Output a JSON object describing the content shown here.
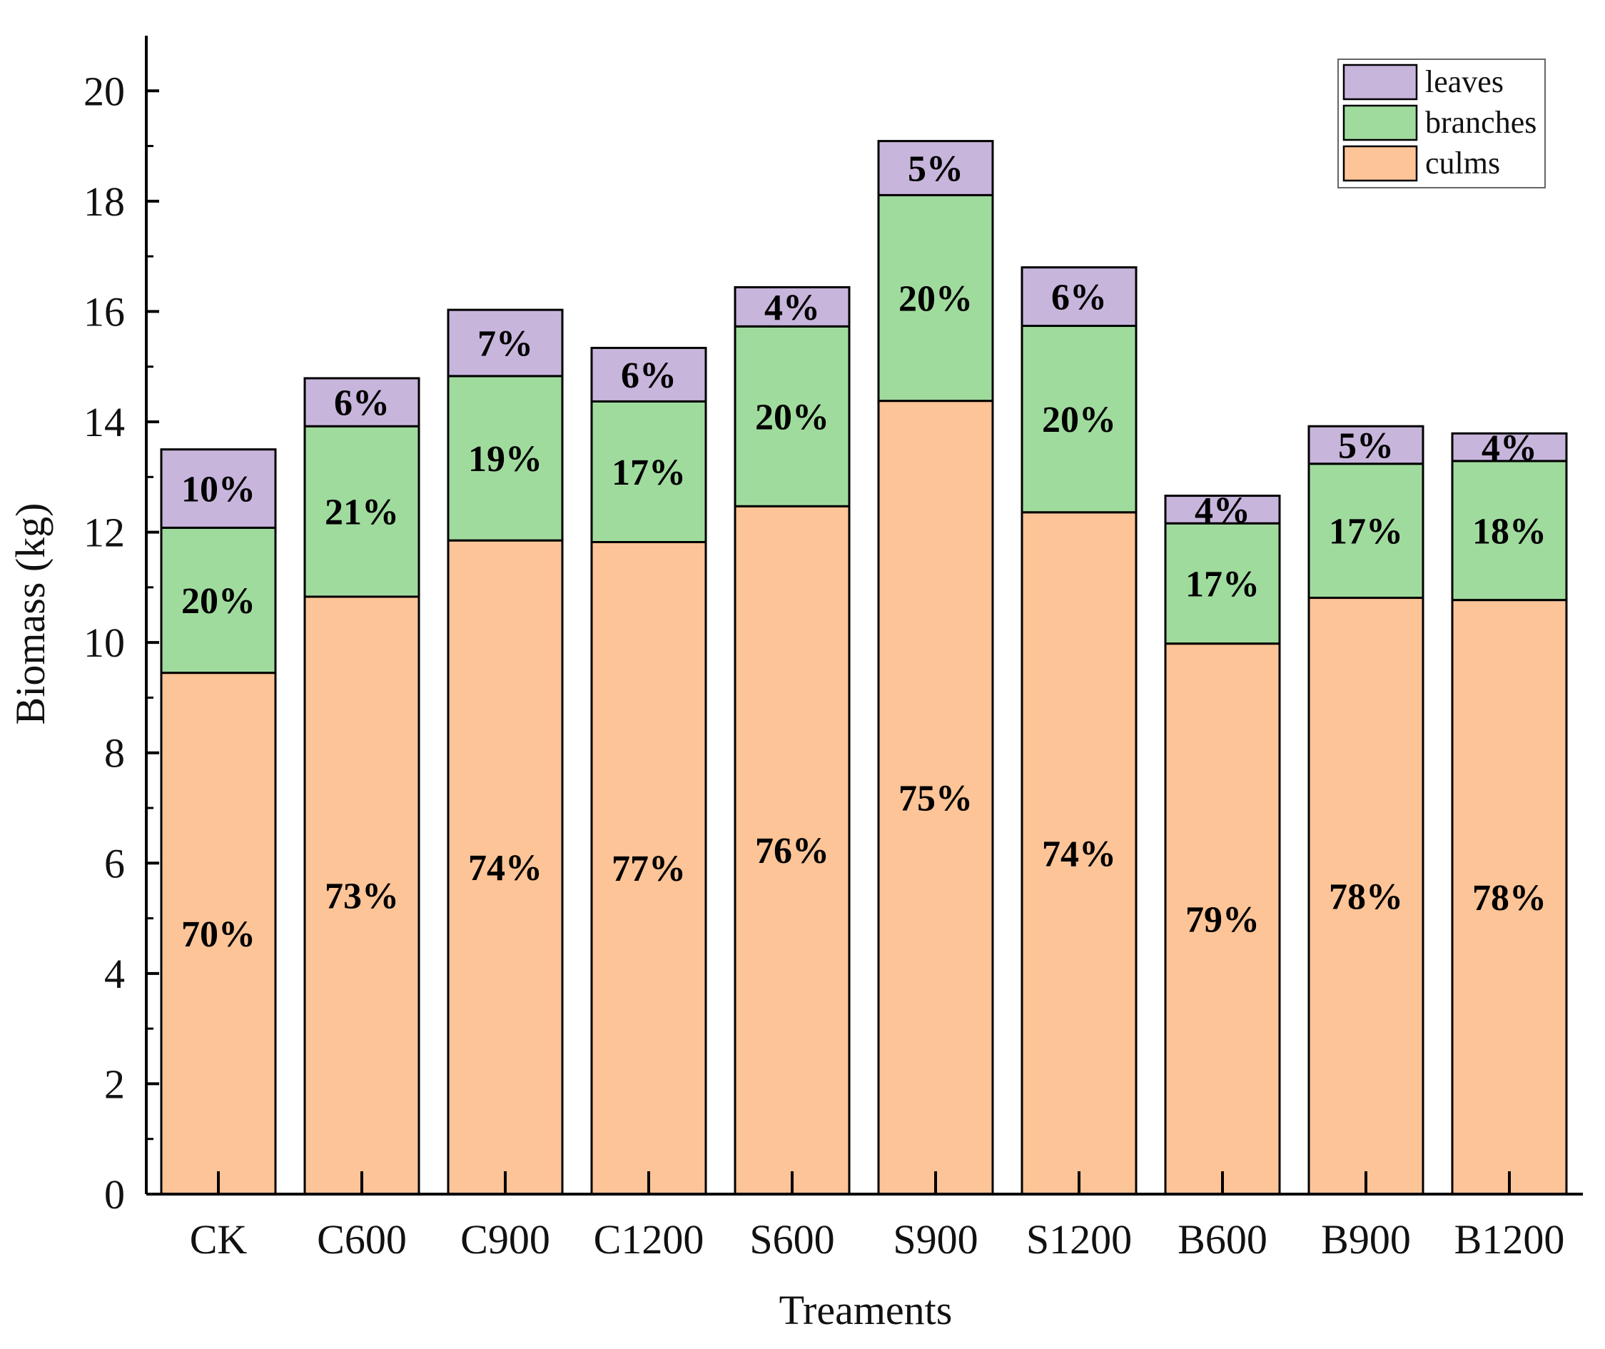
{
  "chart_data": {
    "type": "bar",
    "stacked": true,
    "title": "",
    "xlabel": "Treaments",
    "ylabel": "Biomass (kg)",
    "ylim": [
      0,
      21
    ],
    "yticks": [
      0,
      2,
      4,
      6,
      8,
      10,
      12,
      14,
      16,
      18,
      20
    ],
    "ytick_labels": [
      "0",
      "2",
      "4",
      "6",
      "8",
      "10",
      "12",
      "14",
      "16",
      "18",
      "20"
    ],
    "legend_position": "top-right",
    "categories": [
      "CK",
      "C600",
      "C900",
      "C1200",
      "S600",
      "S900",
      "S1200",
      "B600",
      "B900",
      "B1200"
    ],
    "series": [
      {
        "name": "culms",
        "color": "#FDC497",
        "values": [
          9.45,
          10.83,
          11.85,
          11.82,
          12.47,
          14.38,
          12.36,
          9.98,
          10.81,
          10.77
        ],
        "labels": [
          "70%",
          "73%",
          "74%",
          "77%",
          "76%",
          "75%",
          "74%",
          "79%",
          "78%",
          "78%"
        ]
      },
      {
        "name": "branches",
        "color": "#A0DB9E",
        "values": [
          2.63,
          3.09,
          2.98,
          2.55,
          3.26,
          3.73,
          3.38,
          2.18,
          2.43,
          2.52
        ],
        "labels": [
          "20%",
          "21%",
          "19%",
          "17%",
          "20%",
          "20%",
          "20%",
          "17%",
          "17%",
          "18%"
        ]
      },
      {
        "name": "leaves",
        "color": "#C8B5DC",
        "values": [
          1.42,
          0.87,
          1.2,
          0.97,
          0.71,
          0.98,
          1.06,
          0.5,
          0.68,
          0.5
        ],
        "labels": [
          "10%",
          "6%",
          "7%",
          "6%",
          "4%",
          "5%",
          "6%",
          "4%",
          "5%",
          "4%"
        ]
      }
    ],
    "legend": [
      {
        "name": "leaves",
        "color": "#C8B5DC"
      },
      {
        "name": "branches",
        "color": "#A0DB9E"
      },
      {
        "name": "culms",
        "color": "#FDC497"
      }
    ]
  }
}
